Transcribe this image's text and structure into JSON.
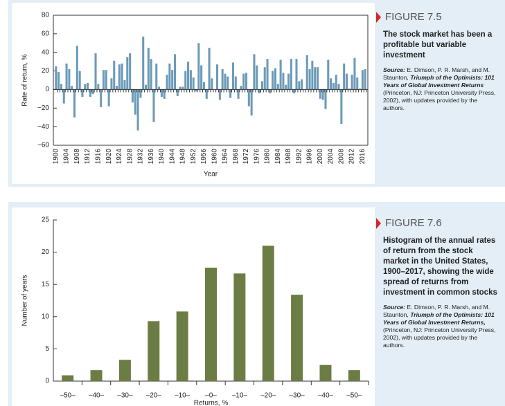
{
  "chart_data": [
    {
      "type": "bar",
      "xlabel": "Year",
      "ylabel": "Rate of return, %",
      "color": "#6b9ab8",
      "x": [
        1900,
        1901,
        1902,
        1903,
        1904,
        1905,
        1906,
        1907,
        1908,
        1909,
        1910,
        1911,
        1912,
        1913,
        1914,
        1915,
        1916,
        1917,
        1918,
        1919,
        1920,
        1921,
        1922,
        1923,
        1924,
        1925,
        1926,
        1927,
        1928,
        1929,
        1930,
        1931,
        1932,
        1933,
        1934,
        1935,
        1936,
        1937,
        1938,
        1939,
        1940,
        1941,
        1942,
        1943,
        1944,
        1945,
        1946,
        1947,
        1948,
        1949,
        1950,
        1951,
        1952,
        1953,
        1954,
        1955,
        1956,
        1957,
        1958,
        1959,
        1960,
        1961,
        1962,
        1963,
        1964,
        1965,
        1966,
        1967,
        1968,
        1969,
        1970,
        1971,
        1972,
        1973,
        1974,
        1975,
        1976,
        1977,
        1978,
        1979,
        1980,
        1981,
        1982,
        1983,
        1984,
        1985,
        1986,
        1987,
        1988,
        1989,
        1990,
        1991,
        1992,
        1993,
        1994,
        1995,
        1996,
        1997,
        1998,
        1999,
        2000,
        2001,
        2002,
        2003,
        2004,
        2005,
        2006,
        2007,
        2008,
        2009,
        2010,
        2011,
        2012,
        2013,
        2014,
        2015,
        2016,
        2017
      ],
      "values": [
        25,
        19,
        6,
        -15,
        28,
        22,
        4,
        -30,
        47,
        20,
        -8,
        6,
        7,
        -8,
        -5,
        39,
        6,
        -19,
        21,
        21,
        -18,
        12,
        31,
        4,
        27,
        28,
        10,
        35,
        39,
        -14,
        -27,
        -44,
        -9,
        57,
        5,
        45,
        33,
        -35,
        28,
        3,
        -8,
        -10,
        16,
        28,
        21,
        38,
        -7,
        3,
        3,
        20,
        30,
        21,
        13,
        -2,
        50,
        26,
        8,
        -10,
        45,
        12,
        0,
        27,
        -11,
        22,
        17,
        14,
        -9,
        29,
        14,
        -10,
        4,
        17,
        18,
        -18,
        -28,
        38,
        26,
        -4,
        9,
        24,
        33,
        -4,
        20,
        23,
        6,
        32,
        18,
        5,
        17,
        33,
        -4,
        33,
        9,
        11,
        0,
        37,
        22,
        31,
        24,
        24,
        -10,
        -11,
        -21,
        32,
        12,
        7,
        16,
        6,
        -37,
        28,
        17,
        1,
        16,
        34,
        13,
        1,
        21,
        22
      ],
      "xlim": [
        1899,
        2018
      ],
      "xticks": [
        1900,
        1904,
        1908,
        1912,
        1916,
        1920,
        1924,
        1928,
        1932,
        1936,
        1940,
        1944,
        1948,
        1952,
        1956,
        1960,
        1964,
        1968,
        1972,
        1976,
        1980,
        1984,
        1988,
        1992,
        1996,
        2000,
        2004,
        2008,
        2012,
        2016
      ],
      "ylim": [
        -60,
        80
      ],
      "yticks": [
        {
          "value": -60,
          "label": "−60"
        },
        {
          "value": -40,
          "label": "−40"
        },
        {
          "value": -20,
          "label": "−20"
        },
        0,
        20,
        40,
        60,
        80
      ]
    },
    {
      "type": "bar",
      "xlabel": "Returns, %",
      "ylabel": "Number of years",
      "color": "#6b7d45",
      "categories": [
        "–50–",
        "–40–",
        "–30–",
        "–20–",
        "–10–",
        "–0–",
        "–10–",
        "–20–",
        "–30–",
        "–40–",
        "–50–"
      ],
      "values": [
        0.9,
        1.7,
        3.3,
        9.3,
        10.8,
        17.6,
        16.7,
        21,
        13.4,
        2.5,
        1.7
      ],
      "ylim": [
        0,
        25
      ],
      "yticks": [
        0,
        5,
        10,
        15,
        20,
        25
      ]
    }
  ],
  "captions": [
    {
      "figure": "FIGURE 7.5",
      "text": "The stock market has been a profitable but variable investment",
      "source_label": "Source:",
      "source_pre": "E. Dimson, P. R. Marsh, and M. Staunton, ",
      "source_title": "Triumph of the Optimists: 101 Years of Global Investment Returns",
      "source_post": " (Princeton, NJ: Princeton University Press, 2002), with updates provided by the authors."
    },
    {
      "figure": "FIGURE 7.6",
      "text": "Histogram of the annual rates of return from the stock market in the United States, 1900–2017, showing the wide spread of returns from investment in common stocks",
      "source_label": "Source:",
      "source_pre": "E. Dimson, P. R. Marsh, and M. Staunton, ",
      "source_title": "Triumph of the Optimists: 101 Years of Global Investment Returns,",
      "source_post": " (Princeton, NJ: Princeton University Press, 2002), with updates provided by the authors."
    }
  ]
}
